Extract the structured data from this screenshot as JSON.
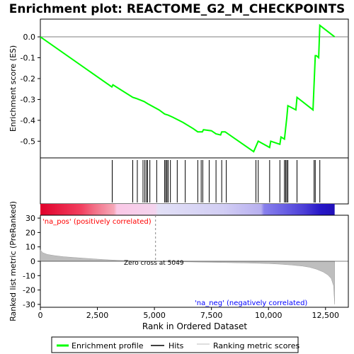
{
  "chart_data": {
    "type": "line",
    "title": "Enrichment plot: REACTOME_G2_M_CHECKPOINTS",
    "panels": {
      "enrichment": {
        "ylabel": "Enrichment score (ES)",
        "ylim": [
          -0.58,
          0.085
        ],
        "yticks": [
          "0.0",
          "-0.1",
          "-0.2",
          "-0.3",
          "-0.4",
          "-0.5"
        ],
        "ytick_values": [
          0.0,
          -0.1,
          -0.2,
          -0.3,
          -0.4,
          -0.5
        ],
        "series": [
          {
            "name": "Enrichment profile",
            "color": "#00ff00",
            "x": [
              0,
              3134,
              3180,
              4050,
              4200,
              4550,
              4700,
              5200,
              5450,
              5600,
              5800,
              6250,
              6700,
              6900,
              7100,
              7150,
              7500,
              7700,
              7900,
              7950,
              8100,
              9350,
              9450,
              9550,
              10050,
              10100,
              10500,
              10550,
              10700,
              10750,
              10800,
              10850,
              11200,
              11250,
              11950,
              12000,
              12050,
              12100,
              12200,
              12250,
              12900
            ],
            "y": [
              0.0,
              -0.24,
              -0.23,
              -0.29,
              -0.295,
              -0.31,
              -0.32,
              -0.35,
              -0.37,
              -0.375,
              -0.385,
              -0.41,
              -0.44,
              -0.455,
              -0.455,
              -0.445,
              -0.45,
              -0.465,
              -0.47,
              -0.455,
              -0.455,
              -0.55,
              -0.525,
              -0.5,
              -0.53,
              -0.5,
              -0.515,
              -0.48,
              -0.49,
              -0.44,
              -0.39,
              -0.33,
              -0.35,
              -0.29,
              -0.35,
              -0.22,
              -0.09,
              -0.09,
              -0.1,
              0.055,
              0.0
            ]
          }
        ]
      },
      "hits": {
        "name": "Hits",
        "positions": [
          3150,
          4050,
          4250,
          4500,
          4580,
          4650,
          4700,
          4800,
          5100,
          5450,
          5500,
          5550,
          5600,
          5700,
          6000,
          6350,
          6900,
          7050,
          7120,
          7400,
          7700,
          7950,
          8150,
          9450,
          9550,
          10050,
          10500,
          10700,
          10750,
          10800,
          10850,
          11250,
          12000,
          12050,
          12250
        ]
      },
      "gradient": {
        "label_pos": "'na_pos' (positively correlated)",
        "label_neg": "'na_neg' (negatively correlated)",
        "pos_color": "#ff0000",
        "neg_color": "#0000ff"
      },
      "metric": {
        "name": "Ranking metric scores",
        "ylabel": "Ranked list metric (PreRanked)",
        "ylim": [
          -32,
          32
        ],
        "yticks": [
          "30",
          "20",
          "10",
          "0",
          "-10",
          "-20",
          "-30"
        ],
        "ytick_values": [
          30,
          20,
          10,
          0,
          -10,
          -20,
          -30
        ],
        "zero_cross_label": "Zero cross at 5049",
        "zero_cross": 5049,
        "fill_color": "#bebebe",
        "x": [
          0,
          100,
          300,
          600,
          1000,
          1500,
          2000,
          2500,
          3000,
          3500,
          4000,
          4500,
          5049,
          6000,
          7000,
          8000,
          9000,
          10000,
          10500,
          11000,
          11500,
          11800,
          12100,
          12400,
          12600,
          12750,
          12850,
          12900
        ],
        "y": [
          8,
          6,
          4.8,
          4,
          3.2,
          2.6,
          2.0,
          1.5,
          1.0,
          0.6,
          0.3,
          0.1,
          0,
          -0.3,
          -0.6,
          -0.9,
          -1.2,
          -1.6,
          -2.0,
          -2.6,
          -3.4,
          -4.2,
          -5.5,
          -7.5,
          -9.5,
          -12,
          -17,
          -30
        ]
      }
    },
    "xlabel": "Rank in Ordered Dataset",
    "xlim": [
      0,
      13500
    ],
    "xticks": [
      "0",
      "2,500",
      "5,000",
      "7,500",
      "10,000",
      "12,500"
    ],
    "xtick_values": [
      0,
      2500,
      5000,
      7500,
      10000,
      12500
    ],
    "n_genes": 12900,
    "legend": {
      "placement": "bottom",
      "items": [
        {
          "label": "Enrichment profile",
          "color": "#00ff00"
        },
        {
          "label": "Hits",
          "color": "#000000"
        },
        {
          "label": "Ranking metric scores",
          "color": "#bebebe"
        }
      ]
    }
  }
}
